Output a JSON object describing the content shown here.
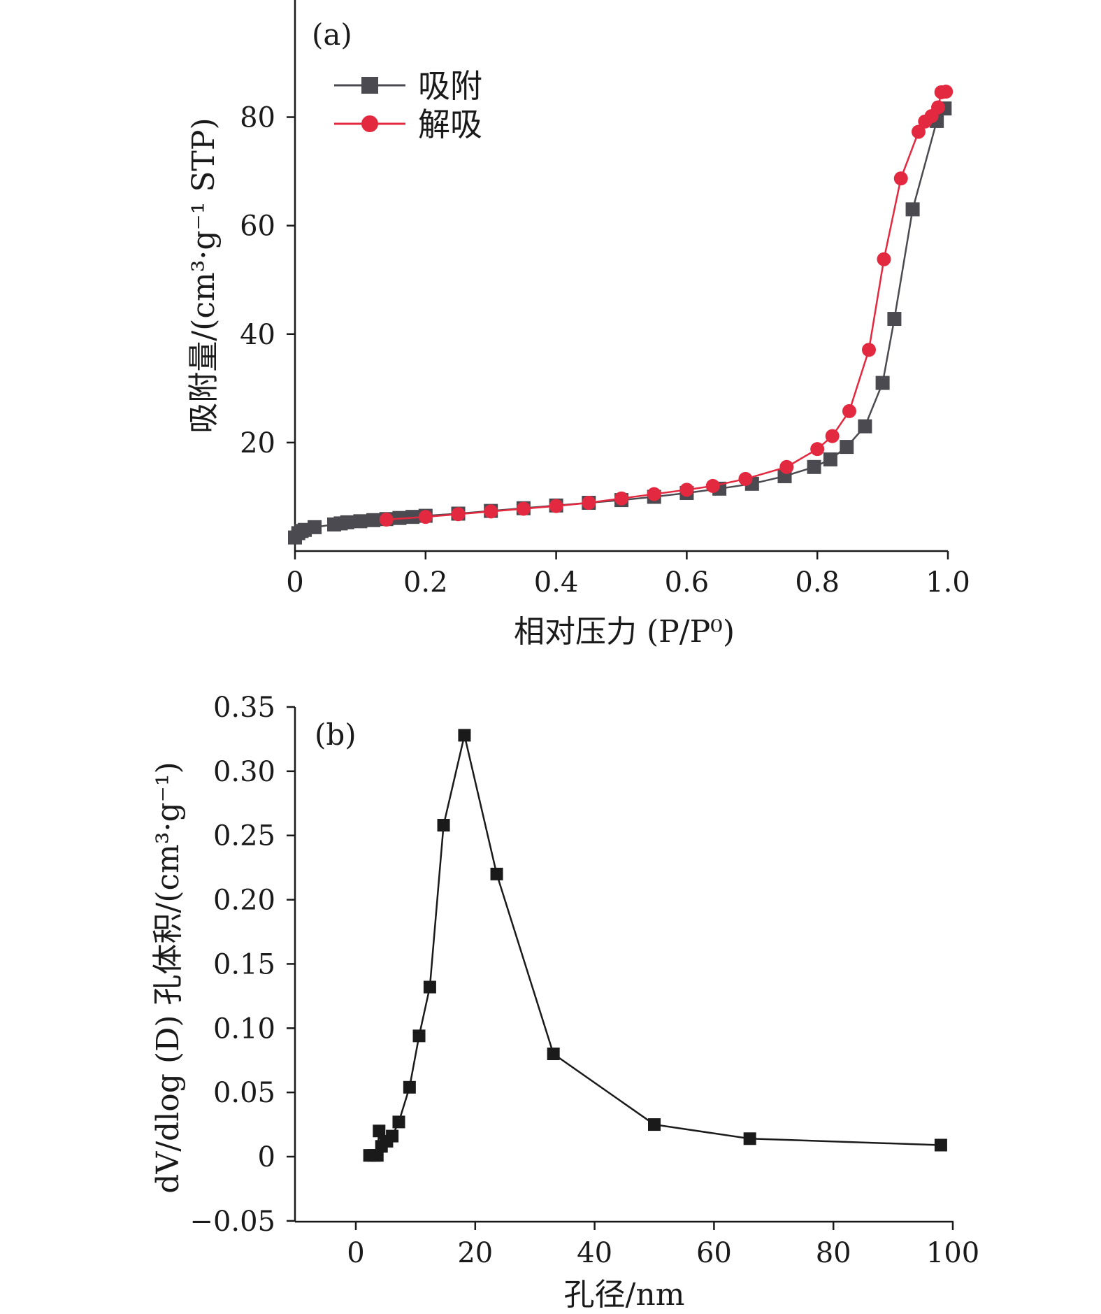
{
  "chart_data": [
    {
      "type": "line",
      "panel_label": "(a)",
      "xlabel": "相对压力 (P/P⁰)",
      "ylabel": "吸附量/(cm³·g⁻¹ STP)",
      "xlim": [
        0,
        1.0
      ],
      "ylim": [
        0,
        100
      ],
      "x_ticks": [
        "0",
        "0.2",
        "0.4",
        "0.6",
        "0.8",
        "1.0"
      ],
      "y_ticks": [
        "20",
        "40",
        "60",
        "80"
      ],
      "legend_position": "top-left",
      "series": [
        {
          "name": "吸附",
          "color": "#4a4a50",
          "marker": "square",
          "points": [
            [
              0.0,
              2.5
            ],
            [
              0.005,
              3.3
            ],
            [
              0.01,
              3.7
            ],
            [
              0.015,
              3.9
            ],
            [
              0.03,
              4.4
            ],
            [
              0.06,
              4.9
            ],
            [
              0.07,
              5.1
            ],
            [
              0.08,
              5.3
            ],
            [
              0.1,
              5.5
            ],
            [
              0.12,
              5.7
            ],
            [
              0.14,
              5.9
            ],
            [
              0.16,
              6.1
            ],
            [
              0.18,
              6.3
            ],
            [
              0.2,
              6.5
            ],
            [
              0.25,
              6.9
            ],
            [
              0.3,
              7.4
            ],
            [
              0.35,
              7.9
            ],
            [
              0.4,
              8.4
            ],
            [
              0.45,
              8.9
            ],
            [
              0.5,
              9.4
            ],
            [
              0.55,
              10.0
            ],
            [
              0.6,
              10.7
            ],
            [
              0.65,
              11.5
            ],
            [
              0.7,
              12.4
            ],
            [
              0.75,
              13.8
            ],
            [
              0.795,
              15.5
            ],
            [
              0.82,
              16.9
            ],
            [
              0.845,
              19.2
            ],
            [
              0.873,
              23.0
            ],
            [
              0.9,
              31.0
            ],
            [
              0.918,
              42.8
            ],
            [
              0.946,
              63.0
            ],
            [
              0.983,
              79.3
            ],
            [
              0.995,
              81.6
            ]
          ]
        },
        {
          "name": "解吸",
          "color": "#e3293f",
          "marker": "circle",
          "points": [
            [
              0.997,
              84.7
            ],
            [
              0.99,
              84.6
            ],
            [
              0.985,
              81.8
            ],
            [
              0.975,
              80.2
            ],
            [
              0.965,
              79.2
            ],
            [
              0.955,
              77.3
            ],
            [
              0.928,
              68.7
            ],
            [
              0.902,
              53.8
            ],
            [
              0.879,
              37.1
            ],
            [
              0.849,
              25.8
            ],
            [
              0.823,
              21.2
            ],
            [
              0.8,
              18.8
            ],
            [
              0.753,
              15.5
            ],
            [
              0.69,
              13.3
            ],
            [
              0.64,
              12.0
            ],
            [
              0.6,
              11.3
            ],
            [
              0.55,
              10.5
            ],
            [
              0.5,
              9.7
            ],
            [
              0.45,
              8.9
            ],
            [
              0.4,
              8.3
            ],
            [
              0.35,
              7.8
            ],
            [
              0.3,
              7.3
            ],
            [
              0.25,
              6.8
            ],
            [
              0.2,
              6.3
            ],
            [
              0.14,
              5.8
            ]
          ]
        }
      ]
    },
    {
      "type": "line",
      "panel_label": "(b)",
      "xlabel": "孔径/nm",
      "ylabel": "dV/dlog (D) 孔体积/(cm³·g⁻¹)",
      "xlim": [
        -10,
        100
      ],
      "ylim": [
        -0.05,
        0.35
      ],
      "x_ticks": [
        "0",
        "20",
        "40",
        "60",
        "80",
        "100"
      ],
      "y_ticks": [
        "−0.05",
        "0",
        "0.05",
        "0.10",
        "0.15",
        "0.20",
        "0.25",
        "0.30",
        "0.35"
      ],
      "series": [
        {
          "color": "#1a1a1a",
          "marker": "square",
          "points": [
            [
              2.3,
              0.001
            ],
            [
              3.0,
              0.001
            ],
            [
              3.6,
              0.001
            ],
            [
              3.9,
              0.02
            ],
            [
              4.3,
              0.008
            ],
            [
              5.2,
              0.012
            ],
            [
              6.1,
              0.016
            ],
            [
              7.2,
              0.027
            ],
            [
              9.0,
              0.054
            ],
            [
              10.6,
              0.094
            ],
            [
              12.4,
              0.132
            ],
            [
              14.7,
              0.258
            ],
            [
              18.2,
              0.328
            ],
            [
              23.6,
              0.22
            ],
            [
              33.1,
              0.08
            ],
            [
              50.0,
              0.025
            ],
            [
              66.0,
              0.014
            ],
            [
              98.0,
              0.009
            ]
          ]
        }
      ]
    }
  ]
}
